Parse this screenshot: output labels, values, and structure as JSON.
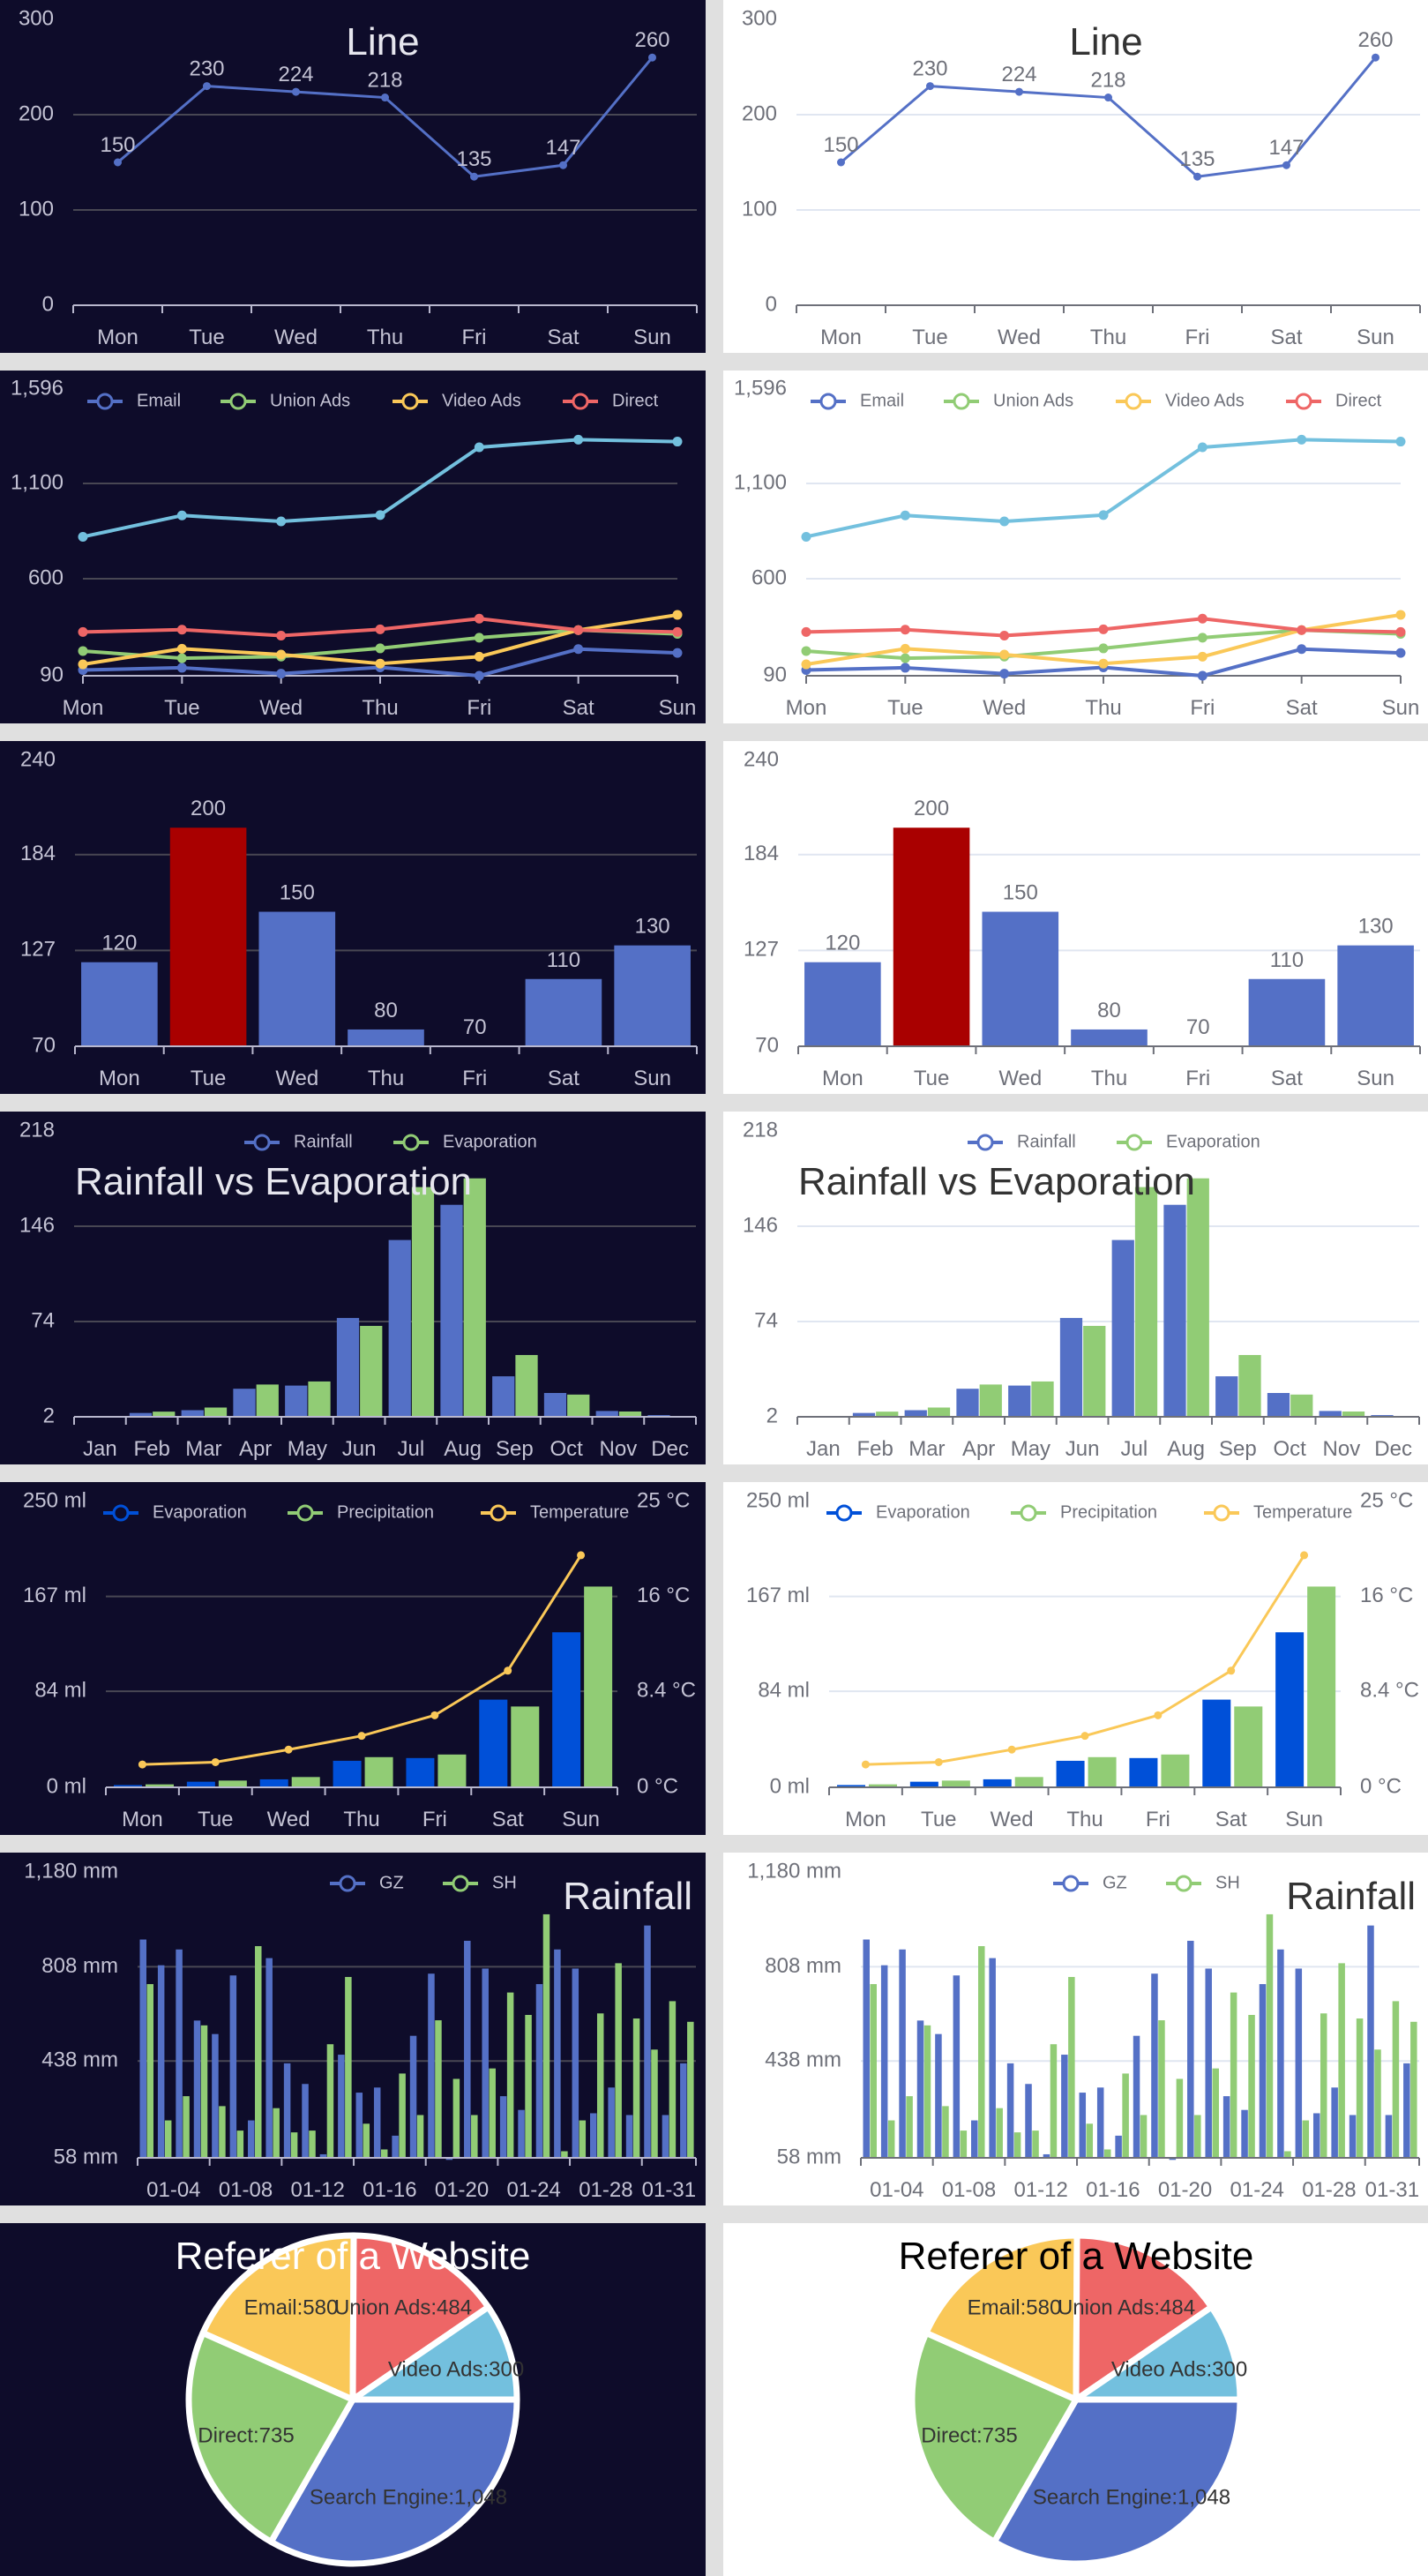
{
  "themes": {
    "dark": {
      "bg": "#0e0c2a",
      "text": "#c4c3d4",
      "title": "#e6e6ee",
      "pie_title": "#ffffff",
      "split": "#484753",
      "axis": "#b9b8ce"
    },
    "light": {
      "bg": "#ffffff",
      "text": "#6e7079",
      "title": "#333333",
      "pie_title": "#000000",
      "split": "#e0e6f1",
      "axis": "#6e7079"
    }
  },
  "chart_data": [
    {
      "type": "line",
      "title": "Line",
      "categories": [
        "Mon",
        "Tue",
        "Wed",
        "Thu",
        "Fri",
        "Sat",
        "Sun"
      ],
      "values": [
        150,
        230,
        224,
        218,
        135,
        147,
        260
      ],
      "value_labels": [
        "150",
        "230",
        "224",
        "218",
        "135",
        "147",
        "260"
      ],
      "color": "#5470c6",
      "ylim": [
        0,
        300
      ],
      "yticks": [
        0,
        100,
        200,
        300
      ],
      "ytick_labels": [
        "0",
        "100",
        "200",
        "300"
      ],
      "grid": true
    },
    {
      "type": "line",
      "categories": [
        "Mon",
        "Tue",
        "Wed",
        "Thu",
        "Fri",
        "Sat",
        "Sun"
      ],
      "ylim": [
        90,
        1596
      ],
      "yticks": [
        90,
        600,
        1100,
        1596
      ],
      "ytick_labels": [
        "90",
        "600",
        "1,100",
        "1,596"
      ],
      "legend": "top",
      "series": [
        {
          "name": "Email",
          "color": "#5470c6",
          "values": [
            120,
            132,
            101,
            134,
            90,
            230,
            210
          ]
        },
        {
          "name": "Union Ads",
          "color": "#91cc75",
          "values": [
            220,
            182,
            191,
            234,
            290,
            330,
            310
          ]
        },
        {
          "name": "Video Ads",
          "color": "#fac858",
          "values": [
            150,
            232,
            201,
            154,
            190,
            330,
            410
          ]
        },
        {
          "name": "Direct",
          "color": "#ee6666",
          "values": [
            320,
            332,
            301,
            334,
            390,
            330,
            320
          ]
        },
        {
          "color": "#73c0de",
          "values": [
            820,
            932,
            901,
            934,
            1290,
            1330,
            1320
          ]
        }
      ],
      "grid": true
    },
    {
      "type": "bar",
      "categories": [
        "Mon",
        "Tue",
        "Wed",
        "Thu",
        "Fri",
        "Sat",
        "Sun"
      ],
      "values": [
        120,
        200,
        150,
        80,
        70,
        110,
        130
      ],
      "value_labels": [
        "120",
        "200",
        "150",
        "80",
        "70",
        "110",
        "130"
      ],
      "color": "#5470c6",
      "highlight": {
        "index": 1,
        "color": "#a90000"
      },
      "ylim": [
        70,
        240
      ],
      "yticks": [
        70,
        127,
        184,
        240
      ],
      "ytick_labels": [
        "70",
        "127",
        "184",
        "240"
      ],
      "grid": true
    },
    {
      "type": "bar",
      "title": "Rainfall vs Evaporation",
      "categories": [
        "Jan",
        "Feb",
        "Mar",
        "Apr",
        "May",
        "Jun",
        "Jul",
        "Aug",
        "Sep",
        "Oct",
        "Nov",
        "Dec"
      ],
      "ylim": [
        2,
        218
      ],
      "yticks": [
        2,
        74,
        146,
        218
      ],
      "ytick_labels": [
        "2",
        "74",
        "146",
        "218"
      ],
      "legend": "top-center",
      "series": [
        {
          "name": "Rainfall",
          "color": "#5470c6",
          "values": [
            2.0,
            4.9,
            7.0,
            23.2,
            25.6,
            76.7,
            135.6,
            162.2,
            32.6,
            20.0,
            6.4,
            3.3
          ]
        },
        {
          "name": "Evaporation",
          "color": "#91cc75",
          "values": [
            2.6,
            5.9,
            9.0,
            26.4,
            28.7,
            70.7,
            175.6,
            182.2,
            48.7,
            18.8,
            6.0,
            2.3
          ]
        }
      ],
      "grid": true
    },
    {
      "type": "bar",
      "categories": [
        "Mon",
        "Tue",
        "Wed",
        "Thu",
        "Fri",
        "Sat",
        "Sun"
      ],
      "ylim": [
        0,
        250
      ],
      "yticks": [
        0,
        84,
        167,
        250
      ],
      "ytick_labels": [
        "0 ml",
        "84 ml",
        "167 ml",
        "250 ml"
      ],
      "y2lim": [
        0,
        25
      ],
      "y2tick_labels": [
        "0 °C",
        "8.4 °C",
        "16 °C",
        "25 °C"
      ],
      "legend": "top",
      "series": [
        {
          "name": "Evaporation",
          "type": "bar",
          "color": "#0050d8",
          "values": [
            2.0,
            4.9,
            7.0,
            23.2,
            25.6,
            76.7,
            135.6
          ]
        },
        {
          "name": "Precipitation",
          "type": "bar",
          "color": "#91cc75",
          "values": [
            2.6,
            5.9,
            9.0,
            26.4,
            28.7,
            70.7,
            175.6
          ]
        },
        {
          "name": "Temperature",
          "type": "line",
          "axis": "right",
          "color": "#fac858",
          "values": [
            2.0,
            2.2,
            3.3,
            4.5,
            6.3,
            10.2,
            20.3
          ]
        }
      ],
      "grid": true
    },
    {
      "type": "bar",
      "title": "Rainfall",
      "x_labels": [
        "01-04",
        "01-08",
        "01-12",
        "01-16",
        "01-20",
        "01-24",
        "01-28",
        "01-31"
      ],
      "ylim": [
        58,
        1180
      ],
      "yticks": [
        58,
        438,
        808,
        1180
      ],
      "ytick_labels": [
        "58 mm",
        "438 mm",
        "808 mm",
        "1,180 mm"
      ],
      "legend": "top-right",
      "series": [
        {
          "name": "GZ",
          "color": "#5470c6",
          "values": [
            915,
            814,
            876,
            597,
            544,
            774,
            205,
            842,
            429,
            348,
            72,
            463,
            314,
            334,
            145,
            537,
            781,
            50,
            910,
            801,
            300,
            246,
            740,
            876,
            801,
            233,
            334,
            226,
            970,
            226,
            429
          ]
        },
        {
          "name": "SH",
          "color": "#91cc75",
          "values": [
            740,
            205,
            300,
            578,
            261,
            165,
            889,
            253,
            158,
            165,
            504,
            768,
            192,
            91,
            389,
            226,
            598,
            368,
            226,
            409,
            707,
            619,
            1014,
            84,
            205,
            625,
            822,
            605,
            483,
            673,
            592
          ]
        }
      ],
      "grid": true
    },
    {
      "type": "pie",
      "title": "Referer of a Website",
      "slices": [
        {
          "name": "Search Engine",
          "value": 1048,
          "label": "Search Engine:1,048",
          "color": "#5470c6"
        },
        {
          "name": "Direct",
          "value": 735,
          "label": "Direct:735",
          "color": "#91cc75"
        },
        {
          "name": "Email",
          "value": 580,
          "label": "Email:580",
          "color": "#fac858"
        },
        {
          "name": "Union Ads",
          "value": 484,
          "label": "Union Ads:484",
          "color": "#ee6666"
        },
        {
          "name": "Video Ads",
          "value": 300,
          "label": "Video Ads:300",
          "color": "#73c0de"
        }
      ]
    }
  ]
}
